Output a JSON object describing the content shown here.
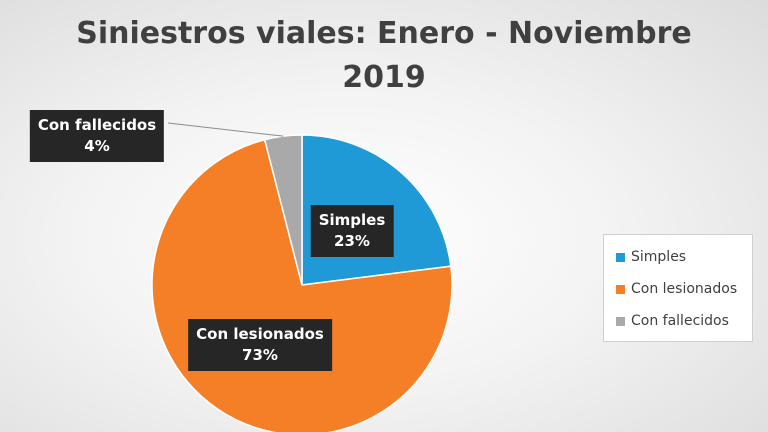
{
  "chart_data": {
    "type": "pie",
    "title_lines": [
      "Siniestros viales: Enero - Noviembre",
      "2019"
    ],
    "categories": [
      "Simples",
      "Con lesionados",
      "Con fallecidos"
    ],
    "values": [
      23,
      73,
      4
    ],
    "value_labels": [
      "23%",
      "73%",
      "4%"
    ],
    "colors": [
      "#1f9ad6",
      "#f57f26",
      "#a9a9a9"
    ],
    "legend_position": "right"
  }
}
